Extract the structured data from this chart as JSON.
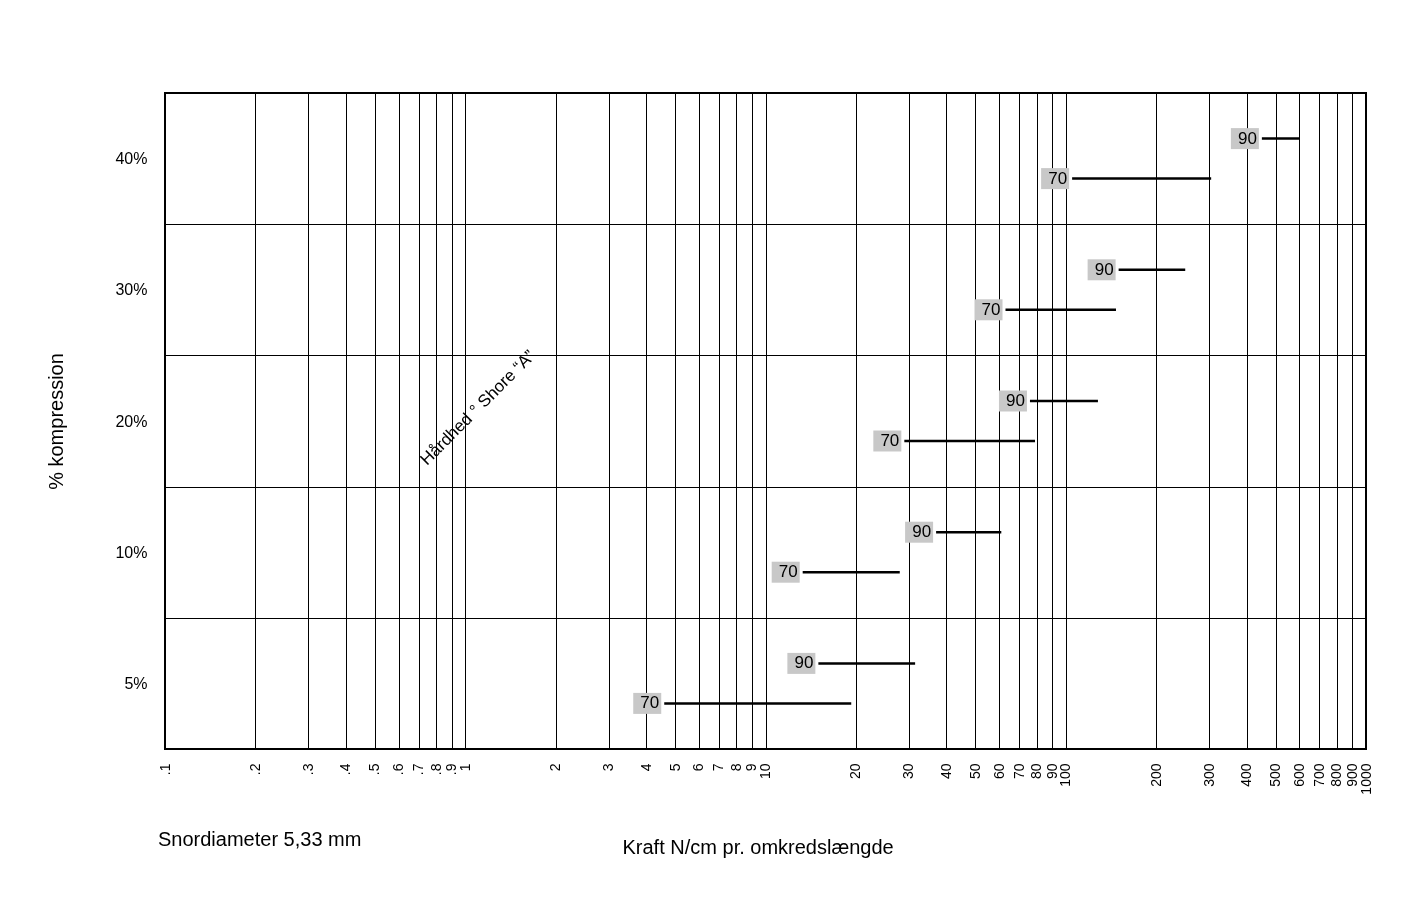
{
  "chart_data": {
    "type": "bar",
    "orientation": "horizontal",
    "xlabel": "Kraft N/cm pr. omkredslængde",
    "ylabel": "% kompression",
    "categories": [
      "40%",
      "30%",
      "20%",
      "10%",
      "5%"
    ],
    "series": [
      {
        "name": "90",
        "color": "#000000",
        "base": [
          450,
          150,
          76,
          37,
          15
        ],
        "values": [
          150,
          100,
          52,
          24,
          16.5
        ]
      },
      {
        "name": "70",
        "color": "#000000",
        "base": [
          105,
          63,
          29,
          13.3,
          4.6
        ],
        "values": [
          200,
          84,
          50,
          14.7,
          14.7
        ]
      }
    ],
    "log": "x",
    "xlim": [
      0.1,
      1000
    ],
    "xticks": [
      {
        "value": 0.1,
        "label": ".1"
      },
      {
        "value": 0.2,
        "label": ".2"
      },
      {
        "value": 0.3,
        "label": ".3"
      },
      {
        "value": 0.4,
        "label": ".4"
      },
      {
        "value": 0.5,
        "label": ".5"
      },
      {
        "value": 0.6,
        "label": ".6"
      },
      {
        "value": 0.7,
        "label": ".7"
      },
      {
        "value": 0.8,
        "label": ".8"
      },
      {
        "value": 0.9,
        "label": ".9"
      },
      1,
      2,
      3,
      4,
      5,
      6,
      7,
      8,
      9,
      10,
      20,
      30,
      40,
      50,
      60,
      70,
      80,
      90,
      100,
      200,
      300,
      400,
      500,
      600,
      700,
      800,
      900,
      1000
    ],
    "grid": true,
    "legend": false,
    "annotations": [
      "Snordiameter 5,33 mm",
      "Hårdhed ° Shore “A”"
    ]
  }
}
